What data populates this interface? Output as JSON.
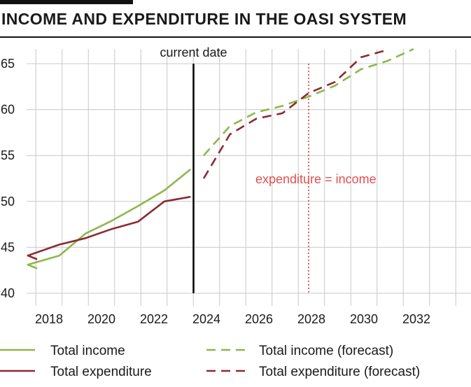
{
  "header": {
    "title": "INCOME AND EXPENDITURE IN THE OASI SYSTEM"
  },
  "chart_data": {
    "type": "line",
    "title": "INCOME AND EXPENDITURE IN THE OASI SYSTEM",
    "xlabel": "",
    "ylabel": "",
    "xlim": [
      2017.2,
      2033.8
    ],
    "ylim": [
      40,
      66
    ],
    "x_ticks": [
      2018,
      2020,
      2022,
      2024,
      2026,
      2028,
      2030,
      2032
    ],
    "y_ticks": [
      40,
      45,
      50,
      55,
      60,
      65
    ],
    "grid": true,
    "legend_position": "bottom",
    "series": [
      {
        "name": "Total income",
        "color": "#8db84a",
        "dash": "solid",
        "points": [
          [
            2017.2,
            42.7
          ],
          [
            2017.7,
            43.1
          ],
          [
            2018.9,
            44.1
          ],
          [
            2019.9,
            46.5
          ],
          [
            2020.9,
            47.9
          ],
          [
            2021.9,
            49.5
          ],
          [
            2022.9,
            51.2
          ],
          [
            2023.9,
            53.5
          ]
        ]
      },
      {
        "name": "Total expenditure",
        "color": "#8b2a34",
        "dash": "solid",
        "points": [
          [
            2017.2,
            43.7
          ],
          [
            2017.7,
            44.1
          ],
          [
            2018.9,
            45.3
          ],
          [
            2019.9,
            46.0
          ],
          [
            2020.9,
            47.0
          ],
          [
            2021.9,
            47.8
          ],
          [
            2022.9,
            50.0
          ],
          [
            2023.9,
            50.5
          ]
        ]
      },
      {
        "name": "Total income (forecast)",
        "color": "#8db84a",
        "dash": "dashed",
        "points": [
          [
            2024.4,
            55.0
          ],
          [
            2025.4,
            58.2
          ],
          [
            2026.4,
            59.7
          ],
          [
            2027.4,
            60.4
          ],
          [
            2028.4,
            61.4
          ],
          [
            2029.4,
            62.6
          ],
          [
            2030.4,
            64.4
          ],
          [
            2031.4,
            65.3
          ],
          [
            2032.4,
            66.6
          ]
        ]
      },
      {
        "name": "Total expenditure (forecast)",
        "color": "#8b2a34",
        "dash": "dashed",
        "points": [
          [
            2024.4,
            52.5
          ],
          [
            2025.4,
            57.3
          ],
          [
            2026.4,
            59.0
          ],
          [
            2027.4,
            59.6
          ],
          [
            2028.4,
            61.8
          ],
          [
            2029.4,
            63.0
          ],
          [
            2030.4,
            65.7
          ],
          [
            2031.4,
            66.5
          ]
        ]
      }
    ],
    "annotations": [
      {
        "label": "current date",
        "x": 2024.0,
        "color": "#000000",
        "style": "solid"
      },
      {
        "label": "expenditure = income",
        "x": 2028.4,
        "color": "#e05050",
        "style": "dotted"
      }
    ]
  },
  "legend": {
    "items": [
      {
        "label": "Total income",
        "color": "#8db84a",
        "dash": "solid"
      },
      {
        "label": "Total income (forecast)",
        "color": "#8db84a",
        "dash": "dashed"
      },
      {
        "label": "Total expenditure",
        "color": "#8b2a34",
        "dash": "solid"
      },
      {
        "label": "Total expenditure (forecast)",
        "color": "#8b2a34",
        "dash": "dashed"
      }
    ]
  }
}
